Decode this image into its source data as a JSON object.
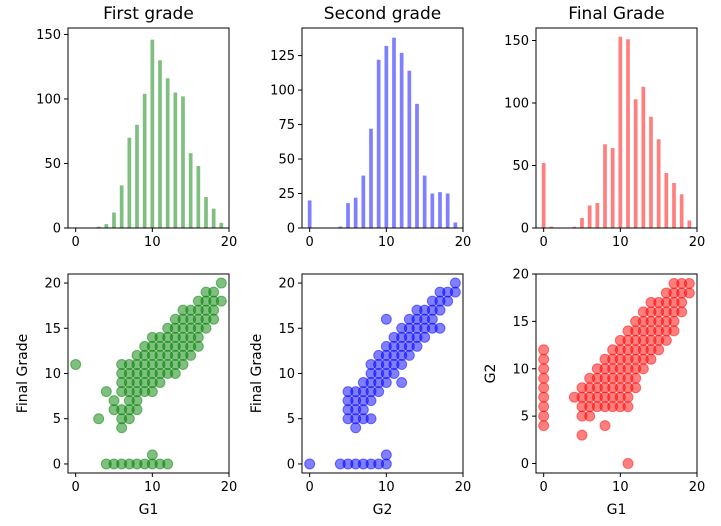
{
  "colors": {
    "first": "#008000",
    "second": "#0000ff",
    "final": "#ff0000"
  },
  "chart_data": [
    {
      "type": "bar",
      "title": "First grade",
      "xlabel": "",
      "ylabel": "",
      "xlim": [
        -1,
        20
      ],
      "ylim": [
        0,
        155
      ],
      "xticks": [
        0,
        10,
        20
      ],
      "yticks": [
        0,
        50,
        100,
        150
      ],
      "color_key": "first",
      "x": [
        3,
        4,
        5,
        6,
        7,
        8,
        9,
        10,
        11,
        12,
        13,
        14,
        15,
        16,
        17,
        18,
        19
      ],
      "values": [
        1,
        3,
        12,
        33,
        70,
        80,
        104,
        146,
        130,
        116,
        105,
        102,
        58,
        48,
        24,
        15,
        4
      ]
    },
    {
      "type": "bar",
      "title": "Second grade",
      "xlabel": "",
      "ylabel": "",
      "xlim": [
        -1,
        20
      ],
      "ylim": [
        0,
        145
      ],
      "xticks": [
        0,
        10,
        20
      ],
      "yticks": [
        0,
        25,
        50,
        75,
        100,
        125
      ],
      "color_key": "second",
      "x": [
        0,
        4,
        5,
        6,
        7,
        8,
        9,
        10,
        11,
        12,
        13,
        14,
        15,
        16,
        17,
        18,
        19
      ],
      "values": [
        20,
        1,
        18,
        22,
        38,
        72,
        122,
        132,
        138,
        127,
        114,
        90,
        38,
        25,
        26,
        25,
        4
      ]
    },
    {
      "type": "bar",
      "title": "Final Grade",
      "xlabel": "",
      "ylabel": "",
      "xlim": [
        -1,
        20
      ],
      "ylim": [
        0,
        160
      ],
      "xticks": [
        0,
        10,
        20
      ],
      "yticks": [
        0,
        50,
        100,
        150
      ],
      "color_key": "final",
      "x": [
        0,
        1,
        4,
        5,
        6,
        7,
        8,
        9,
        10,
        11,
        12,
        13,
        14,
        15,
        16,
        17,
        18,
        19
      ],
      "values": [
        52,
        1,
        1,
        8,
        18,
        20,
        67,
        64,
        153,
        151,
        103,
        113,
        89,
        71,
        44,
        36,
        27,
        6
      ]
    },
    {
      "type": "scatter",
      "title": "",
      "xlabel": "G1",
      "ylabel": "Final Grade",
      "xlim": [
        -1,
        20
      ],
      "ylim": [
        -1,
        21
      ],
      "xticks": [
        0,
        10,
        20
      ],
      "yticks": [
        0,
        5,
        10,
        15,
        20
      ],
      "color_key": "first",
      "alpha": 0.5,
      "points": [
        [
          0,
          11
        ],
        [
          3,
          5
        ],
        [
          4,
          8
        ],
        [
          4,
          0
        ],
        [
          5,
          0
        ],
        [
          5,
          6
        ],
        [
          5,
          7
        ],
        [
          6,
          0
        ],
        [
          6,
          4
        ],
        [
          6,
          5
        ],
        [
          6,
          6
        ],
        [
          6,
          8
        ],
        [
          6,
          9
        ],
        [
          6,
          10
        ],
        [
          6,
          11
        ],
        [
          7,
          0
        ],
        [
          7,
          5
        ],
        [
          7,
          6
        ],
        [
          7,
          7
        ],
        [
          7,
          8
        ],
        [
          7,
          9
        ],
        [
          7,
          10
        ],
        [
          7,
          11
        ],
        [
          8,
          0
        ],
        [
          8,
          6
        ],
        [
          8,
          7
        ],
        [
          8,
          8
        ],
        [
          8,
          9
        ],
        [
          8,
          10
        ],
        [
          8,
          11
        ],
        [
          8,
          12
        ],
        [
          9,
          0
        ],
        [
          9,
          8
        ],
        [
          9,
          9
        ],
        [
          9,
          10
        ],
        [
          9,
          11
        ],
        [
          9,
          12
        ],
        [
          9,
          13
        ],
        [
          10,
          0
        ],
        [
          10,
          1
        ],
        [
          10,
          8
        ],
        [
          10,
          9
        ],
        [
          10,
          10
        ],
        [
          10,
          11
        ],
        [
          10,
          12
        ],
        [
          10,
          13
        ],
        [
          10,
          14
        ],
        [
          11,
          0
        ],
        [
          11,
          9
        ],
        [
          11,
          10
        ],
        [
          11,
          11
        ],
        [
          11,
          12
        ],
        [
          11,
          13
        ],
        [
          11,
          14
        ],
        [
          12,
          0
        ],
        [
          12,
          10
        ],
        [
          12,
          11
        ],
        [
          12,
          12
        ],
        [
          12,
          13
        ],
        [
          12,
          14
        ],
        [
          12,
          15
        ],
        [
          13,
          10
        ],
        [
          13,
          11
        ],
        [
          13,
          12
        ],
        [
          13,
          13
        ],
        [
          13,
          14
        ],
        [
          13,
          15
        ],
        [
          13,
          16
        ],
        [
          14,
          11
        ],
        [
          14,
          12
        ],
        [
          14,
          13
        ],
        [
          14,
          14
        ],
        [
          14,
          15
        ],
        [
          14,
          16
        ],
        [
          14,
          17
        ],
        [
          15,
          12
        ],
        [
          15,
          13
        ],
        [
          15,
          14
        ],
        [
          15,
          15
        ],
        [
          15,
          16
        ],
        [
          15,
          17
        ],
        [
          16,
          13
        ],
        [
          16,
          14
        ],
        [
          16,
          15
        ],
        [
          16,
          16
        ],
        [
          16,
          17
        ],
        [
          16,
          18
        ],
        [
          17,
          15
        ],
        [
          17,
          16
        ],
        [
          17,
          17
        ],
        [
          17,
          18
        ],
        [
          17,
          19
        ],
        [
          18,
          16
        ],
        [
          18,
          17
        ],
        [
          18,
          18
        ],
        [
          18,
          19
        ],
        [
          19,
          18
        ],
        [
          19,
          20
        ]
      ]
    },
    {
      "type": "scatter",
      "title": "",
      "xlabel": "G2",
      "ylabel": "Final Grade",
      "xlim": [
        -1,
        20
      ],
      "ylim": [
        -1,
        21
      ],
      "xticks": [
        0,
        10,
        20
      ],
      "yticks": [
        0,
        5,
        10,
        15,
        20
      ],
      "color_key": "second",
      "alpha": 0.5,
      "points": [
        [
          0,
          0
        ],
        [
          4,
          0
        ],
        [
          5,
          0
        ],
        [
          5,
          5
        ],
        [
          5,
          6
        ],
        [
          5,
          7
        ],
        [
          5,
          8
        ],
        [
          6,
          0
        ],
        [
          6,
          4
        ],
        [
          6,
          5
        ],
        [
          6,
          6
        ],
        [
          6,
          7
        ],
        [
          6,
          8
        ],
        [
          7,
          0
        ],
        [
          7,
          5
        ],
        [
          7,
          6
        ],
        [
          7,
          7
        ],
        [
          7,
          8
        ],
        [
          7,
          9
        ],
        [
          8,
          0
        ],
        [
          8,
          5
        ],
        [
          8,
          7
        ],
        [
          8,
          8
        ],
        [
          8,
          9
        ],
        [
          8,
          10
        ],
        [
          8,
          11
        ],
        [
          9,
          0
        ],
        [
          9,
          8
        ],
        [
          9,
          9
        ],
        [
          9,
          10
        ],
        [
          9,
          11
        ],
        [
          9,
          12
        ],
        [
          10,
          0
        ],
        [
          10,
          1
        ],
        [
          10,
          9
        ],
        [
          10,
          10
        ],
        [
          10,
          11
        ],
        [
          10,
          12
        ],
        [
          10,
          13
        ],
        [
          10,
          16
        ],
        [
          11,
          10
        ],
        [
          11,
          11
        ],
        [
          11,
          12
        ],
        [
          11,
          13
        ],
        [
          11,
          14
        ],
        [
          12,
          9
        ],
        [
          12,
          11
        ],
        [
          12,
          12
        ],
        [
          12,
          13
        ],
        [
          12,
          14
        ],
        [
          12,
          15
        ],
        [
          13,
          12
        ],
        [
          13,
          13
        ],
        [
          13,
          14
        ],
        [
          13,
          15
        ],
        [
          13,
          16
        ],
        [
          14,
          13
        ],
        [
          14,
          14
        ],
        [
          14,
          15
        ],
        [
          14,
          16
        ],
        [
          14,
          17
        ],
        [
          15,
          14
        ],
        [
          15,
          15
        ],
        [
          15,
          16
        ],
        [
          15,
          17
        ],
        [
          16,
          15
        ],
        [
          16,
          16
        ],
        [
          16,
          17
        ],
        [
          16,
          18
        ],
        [
          17,
          15
        ],
        [
          17,
          17
        ],
        [
          17,
          18
        ],
        [
          17,
          19
        ],
        [
          18,
          18
        ],
        [
          18,
          19
        ],
        [
          19,
          19
        ],
        [
          19,
          20
        ]
      ]
    },
    {
      "type": "scatter",
      "title": "",
      "xlabel": "G1",
      "ylabel": "G2",
      "xlim": [
        -1,
        20
      ],
      "ylim": [
        -1,
        20
      ],
      "xticks": [
        0,
        10,
        20
      ],
      "yticks": [
        0,
        5,
        10,
        15,
        20
      ],
      "color_key": "final",
      "alpha": 0.5,
      "points": [
        [
          0,
          4
        ],
        [
          0,
          5
        ],
        [
          0,
          6
        ],
        [
          0,
          7
        ],
        [
          0,
          8
        ],
        [
          0,
          9
        ],
        [
          0,
          10
        ],
        [
          0,
          11
        ],
        [
          0,
          12
        ],
        [
          4,
          7
        ],
        [
          5,
          3
        ],
        [
          5,
          5
        ],
        [
          5,
          6
        ],
        [
          5,
          7
        ],
        [
          5,
          8
        ],
        [
          6,
          5
        ],
        [
          6,
          6
        ],
        [
          6,
          7
        ],
        [
          6,
          8
        ],
        [
          6,
          9
        ],
        [
          7,
          6
        ],
        [
          7,
          7
        ],
        [
          7,
          8
        ],
        [
          7,
          9
        ],
        [
          7,
          10
        ],
        [
          8,
          4
        ],
        [
          8,
          6
        ],
        [
          8,
          7
        ],
        [
          8,
          8
        ],
        [
          8,
          9
        ],
        [
          8,
          10
        ],
        [
          8,
          11
        ],
        [
          9,
          6
        ],
        [
          9,
          7
        ],
        [
          9,
          8
        ],
        [
          9,
          9
        ],
        [
          9,
          10
        ],
        [
          9,
          11
        ],
        [
          9,
          12
        ],
        [
          10,
          6
        ],
        [
          10,
          7
        ],
        [
          10,
          8
        ],
        [
          10,
          9
        ],
        [
          10,
          10
        ],
        [
          10,
          11
        ],
        [
          10,
          12
        ],
        [
          10,
          13
        ],
        [
          11,
          0
        ],
        [
          11,
          6
        ],
        [
          11,
          7
        ],
        [
          11,
          8
        ],
        [
          11,
          9
        ],
        [
          11,
          10
        ],
        [
          11,
          11
        ],
        [
          11,
          12
        ],
        [
          11,
          13
        ],
        [
          11,
          14
        ],
        [
          12,
          8
        ],
        [
          12,
          9
        ],
        [
          12,
          10
        ],
        [
          12,
          11
        ],
        [
          12,
          12
        ],
        [
          12,
          13
        ],
        [
          12,
          14
        ],
        [
          12,
          15
        ],
        [
          13,
          10
        ],
        [
          13,
          11
        ],
        [
          13,
          12
        ],
        [
          13,
          13
        ],
        [
          13,
          14
        ],
        [
          13,
          15
        ],
        [
          13,
          16
        ],
        [
          14,
          11
        ],
        [
          14,
          12
        ],
        [
          14,
          13
        ],
        [
          14,
          14
        ],
        [
          14,
          15
        ],
        [
          14,
          16
        ],
        [
          14,
          17
        ],
        [
          15,
          12
        ],
        [
          15,
          13
        ],
        [
          15,
          14
        ],
        [
          15,
          15
        ],
        [
          15,
          16
        ],
        [
          15,
          17
        ],
        [
          16,
          13
        ],
        [
          16,
          14
        ],
        [
          16,
          15
        ],
        [
          16,
          16
        ],
        [
          16,
          17
        ],
        [
          16,
          18
        ],
        [
          17,
          14
        ],
        [
          17,
          15
        ],
        [
          17,
          16
        ],
        [
          17,
          17
        ],
        [
          17,
          18
        ],
        [
          17,
          19
        ],
        [
          18,
          16
        ],
        [
          18,
          17
        ],
        [
          18,
          18
        ],
        [
          18,
          19
        ],
        [
          19,
          18
        ],
        [
          19,
          19
        ]
      ]
    }
  ]
}
